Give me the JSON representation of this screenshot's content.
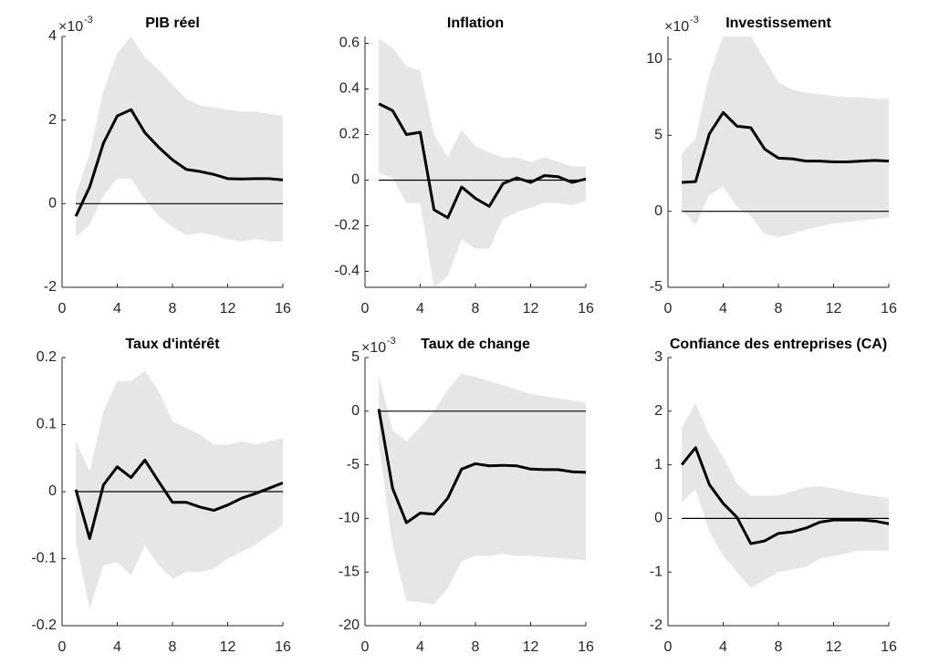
{
  "chart_data": [
    {
      "type": "line",
      "title": "PIB réel",
      "y_multiplier": "×10",
      "y_exponent": "-3",
      "x": [
        1,
        2,
        3,
        4,
        5,
        6,
        7,
        8,
        9,
        10,
        11,
        12,
        13,
        14,
        15,
        16
      ],
      "values": [
        -0.3,
        0.4,
        1.45,
        2.1,
        2.25,
        1.7,
        1.35,
        1.05,
        0.82,
        0.77,
        0.7,
        0.6,
        0.59,
        0.6,
        0.6,
        0.57
      ],
      "upper": [
        0.2,
        1.2,
        2.7,
        3.6,
        4.0,
        3.5,
        3.2,
        2.85,
        2.5,
        2.35,
        2.3,
        2.25,
        2.2,
        2.2,
        2.15,
        2.1
      ],
      "lower": [
        -0.8,
        -0.5,
        0.2,
        0.6,
        0.6,
        0.1,
        -0.3,
        -0.55,
        -0.75,
        -0.7,
        -0.75,
        -0.85,
        -0.9,
        -0.85,
        -0.9,
        -0.9
      ],
      "color": "#000000",
      "band_color": "#e6e6e6",
      "xlim": [
        0,
        16
      ],
      "xticks": [
        0,
        4,
        8,
        12,
        16
      ],
      "ylim": [
        -2,
        4
      ],
      "yticks": [
        -2,
        0,
        2,
        4
      ]
    },
    {
      "type": "line",
      "title": "Inflation",
      "x": [
        1,
        2,
        3,
        4,
        5,
        6,
        7,
        8,
        9,
        10,
        11,
        12,
        13,
        14,
        15,
        16
      ],
      "values": [
        0.335,
        0.305,
        0.2,
        0.21,
        -0.13,
        -0.165,
        -0.03,
        -0.08,
        -0.115,
        -0.015,
        0.01,
        -0.01,
        0.02,
        0.015,
        -0.01,
        0.005
      ],
      "upper": [
        0.62,
        0.58,
        0.5,
        0.48,
        0.2,
        0.1,
        0.22,
        0.15,
        0.12,
        0.1,
        0.1,
        0.08,
        0.1,
        0.08,
        0.06,
        0.06
      ],
      "lower": [
        0.03,
        0.01,
        -0.1,
        -0.1,
        -0.47,
        -0.42,
        -0.26,
        -0.3,
        -0.3,
        -0.17,
        -0.14,
        -0.12,
        -0.1,
        -0.1,
        -0.11,
        -0.09
      ],
      "color": "#000000",
      "band_color": "#e6e6e6",
      "xlim": [
        0,
        16
      ],
      "xticks": [
        0,
        4,
        8,
        12,
        16
      ],
      "ylim": [
        -0.47,
        0.63
      ],
      "yticks": [
        -0.4,
        -0.2,
        0,
        0.2,
        0.4,
        0.6
      ]
    },
    {
      "type": "line",
      "title": "Investissement",
      "y_multiplier": "×10",
      "y_exponent": "-3",
      "x": [
        1,
        2,
        3,
        4,
        5,
        6,
        7,
        8,
        9,
        10,
        11,
        12,
        13,
        14,
        15,
        16
      ],
      "values": [
        1.9,
        1.95,
        5.1,
        6.5,
        5.6,
        5.5,
        4.1,
        3.5,
        3.45,
        3.3,
        3.3,
        3.25,
        3.25,
        3.3,
        3.35,
        3.3
      ],
      "upper": [
        3.8,
        4.8,
        9.0,
        11.5,
        11.5,
        11.5,
        10.0,
        8.5,
        8.0,
        7.8,
        7.7,
        7.6,
        7.5,
        7.5,
        7.4,
        7.4
      ],
      "lower": [
        0.1,
        -0.9,
        1.1,
        1.6,
        0.3,
        -0.3,
        -1.5,
        -1.7,
        -1.5,
        -1.2,
        -1.0,
        -0.8,
        -0.7,
        -0.6,
        -0.5,
        -0.4
      ],
      "color": "#000000",
      "band_color": "#e6e6e6",
      "xlim": [
        0,
        16
      ],
      "xticks": [
        0,
        4,
        8,
        12,
        16
      ],
      "ylim": [
        -5,
        11.5
      ],
      "yticks": [
        -5,
        0,
        5,
        10
      ]
    },
    {
      "type": "line",
      "title": "Taux d'intérêt",
      "x": [
        1,
        2,
        3,
        4,
        5,
        6,
        7,
        8,
        9,
        10,
        11,
        12,
        13,
        14,
        15,
        16
      ],
      "values": [
        0.003,
        -0.07,
        0.01,
        0.037,
        0.021,
        0.047,
        0.015,
        -0.016,
        -0.016,
        -0.023,
        -0.028,
        -0.02,
        -0.01,
        -0.003,
        0.005,
        0.013
      ],
      "upper": [
        0.075,
        0.03,
        0.12,
        0.165,
        0.165,
        0.18,
        0.15,
        0.105,
        0.095,
        0.085,
        0.07,
        0.07,
        0.075,
        0.07,
        0.075,
        0.08
      ],
      "lower": [
        -0.075,
        -0.175,
        -0.11,
        -0.105,
        -0.125,
        -0.08,
        -0.11,
        -0.13,
        -0.12,
        -0.12,
        -0.115,
        -0.1,
        -0.09,
        -0.08,
        -0.065,
        -0.05
      ],
      "color": "#000000",
      "band_color": "#e6e6e6",
      "xlim": [
        0,
        16
      ],
      "xticks": [
        0,
        4,
        8,
        12,
        16
      ],
      "ylim": [
        -0.2,
        0.2
      ],
      "yticks": [
        -0.2,
        -0.1,
        0,
        0.1,
        0.2
      ]
    },
    {
      "type": "line",
      "title": "Taux de change",
      "y_multiplier": "×10",
      "y_exponent": "-3",
      "x": [
        1,
        2,
        3,
        4,
        5,
        6,
        7,
        8,
        9,
        10,
        11,
        12,
        13,
        14,
        15,
        16
      ],
      "values": [
        0.2,
        -7.2,
        -10.4,
        -9.5,
        -9.6,
        -8.1,
        -5.4,
        -4.9,
        -5.1,
        -5.05,
        -5.1,
        -5.4,
        -5.45,
        -5.45,
        -5.65,
        -5.7
      ],
      "upper": [
        3.3,
        -1.8,
        -2.8,
        -1.5,
        0,
        2.0,
        3.5,
        3.2,
        2.8,
        2.4,
        2.0,
        1.6,
        1.4,
        1.2,
        1.0,
        0.8
      ],
      "lower": [
        -3.0,
        -12.5,
        -17.7,
        -17.8,
        -18.0,
        -16.5,
        -14.0,
        -13.5,
        -13.5,
        -13.3,
        -13.5,
        -13.5,
        -13.6,
        -13.7,
        -13.8,
        -13.9
      ],
      "color": "#000000",
      "band_color": "#e6e6e6",
      "xlim": [
        0,
        16
      ],
      "xticks": [
        0,
        4,
        8,
        12,
        16
      ],
      "ylim": [
        -20,
        5
      ],
      "yticks": [
        -20,
        -15,
        -10,
        -5,
        0,
        5
      ]
    },
    {
      "type": "line",
      "title": "Confiance des entreprises (CA)",
      "x": [
        1,
        2,
        3,
        4,
        5,
        6,
        7,
        8,
        9,
        10,
        11,
        12,
        13,
        14,
        15,
        16
      ],
      "values": [
        1.0,
        1.32,
        0.63,
        0.28,
        0.02,
        -0.47,
        -0.42,
        -0.28,
        -0.25,
        -0.18,
        -0.07,
        -0.03,
        -0.03,
        -0.03,
        -0.05,
        -0.1
      ],
      "upper": [
        1.7,
        2.15,
        1.55,
        1.15,
        0.65,
        0.42,
        0.42,
        0.43,
        0.5,
        0.58,
        0.6,
        0.56,
        0.5,
        0.45,
        0.42,
        0.38
      ],
      "lower": [
        0.3,
        0.55,
        -0.25,
        -0.7,
        -1.0,
        -1.3,
        -1.15,
        -1.0,
        -0.95,
        -0.9,
        -0.75,
        -0.7,
        -0.65,
        -0.6,
        -0.6,
        -0.6
      ],
      "color": "#000000",
      "band_color": "#e6e6e6",
      "xlim": [
        0,
        16
      ],
      "xticks": [
        0,
        4,
        8,
        12,
        16
      ],
      "ylim": [
        -2,
        3
      ],
      "yticks": [
        -2,
        -1,
        0,
        1,
        2,
        3
      ]
    }
  ]
}
